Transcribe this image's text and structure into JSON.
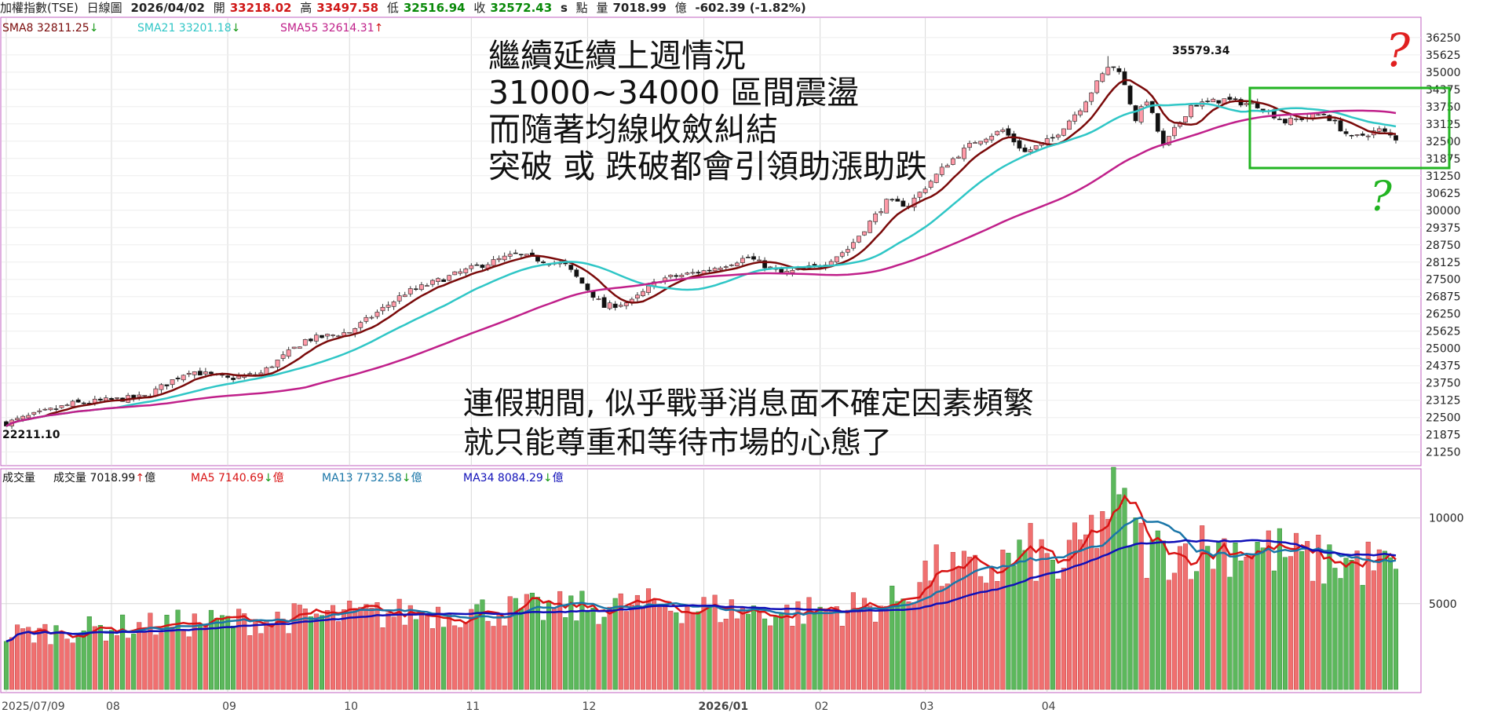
{
  "header": {
    "symbol": "加權指數(TSE)",
    "period": "日線圖",
    "date": "2026/04/02",
    "open_label": "開",
    "open": "33218.02",
    "high_label": "高",
    "high": "33497.58",
    "low_label": "低",
    "low": "32516.94",
    "close_label": "收",
    "close": "32572.43",
    "s_mark": "s",
    "points_label": "點",
    "amount_label": "量",
    "amount": "7018.99",
    "amount_unit": "億",
    "change": "-602.39 (-1.82%)"
  },
  "price_panel": {
    "legend": [
      {
        "label": "SMA8 32811.25",
        "arrow": "↓",
        "color": "#7a0a0a"
      },
      {
        "label": "SMA21 33201.18",
        "arrow": "↓",
        "color": "#2fc6c6"
      },
      {
        "label": "SMA55 32614.31",
        "arrow": "↑",
        "color": "#c0208a"
      }
    ],
    "high_marker": "35579.34",
    "low_marker": "22211.10"
  },
  "volume_panel": {
    "title": "成交量",
    "legend": [
      {
        "label": "成交量 7018.99",
        "arrow": "↑",
        "unit": "億",
        "color": "#111111"
      },
      {
        "label": "MA5 7140.69",
        "arrow": "↓",
        "unit": "億",
        "color": "#d81414"
      },
      {
        "label": "MA13 7732.58",
        "arrow": "↓",
        "unit": "億",
        "color": "#1a76a8"
      },
      {
        "label": "MA34 8084.29",
        "arrow": "↓",
        "unit": "億",
        "color": "#1010b8"
      }
    ]
  },
  "annotations": {
    "top_lines": [
      "繼續延續上週情況",
      "31000~34000 區間震盪",
      "而隨著均線收斂糾結",
      "突破 或 跌破都會引領助漲助跌"
    ],
    "bottom_lines": [
      "連假期間, 似乎戰爭消息面不確定因素頻繁",
      "就只能尊重和等待市場的心態了"
    ],
    "question_mark": "?"
  },
  "chart_data": [
    {
      "type": "candlestick",
      "x_ticks": [
        "2025/07/09",
        "08",
        "09",
        "10",
        "11",
        "12",
        "2026/01",
        "02",
        "03",
        "04"
      ],
      "y_ticks": [
        21250,
        21875,
        22500,
        23125,
        23750,
        24375,
        25000,
        25625,
        26250,
        26875,
        27500,
        28125,
        28750,
        29375,
        30000,
        30625,
        31250,
        31875,
        32500,
        33125,
        33750,
        34375,
        35000,
        35625,
        36250
      ],
      "ylim": [
        20900,
        36700
      ],
      "anchors": [
        [
          0,
          22300
        ],
        [
          12,
          23000
        ],
        [
          25,
          23250
        ],
        [
          33,
          24200
        ],
        [
          40,
          23900
        ],
        [
          46,
          24100
        ],
        [
          54,
          25300
        ],
        [
          62,
          25600
        ],
        [
          72,
          27000
        ],
        [
          84,
          27900
        ],
        [
          92,
          28400
        ],
        [
          101,
          28000
        ],
        [
          108,
          26500
        ],
        [
          113,
          26700
        ],
        [
          118,
          27500
        ],
        [
          126,
          27800
        ],
        [
          134,
          28300
        ],
        [
          140,
          27700
        ],
        [
          147,
          28000
        ],
        [
          152,
          28600
        ],
        [
          159,
          30300
        ],
        [
          163,
          30200
        ],
        [
          170,
          31700
        ],
        [
          175,
          32500
        ],
        [
          180,
          32900
        ],
        [
          184,
          32100
        ],
        [
          189,
          32600
        ],
        [
          194,
          33700
        ],
        [
          199,
          35200
        ],
        [
          201,
          35100
        ],
        [
          204,
          33300
        ],
        [
          206,
          34000
        ],
        [
          209,
          32300
        ],
        [
          214,
          33800
        ],
        [
          220,
          34000
        ],
        [
          226,
          33800
        ],
        [
          231,
          33200
        ],
        [
          238,
          33500
        ],
        [
          243,
          32600
        ],
        [
          248,
          32900
        ],
        [
          251,
          32600
        ]
      ],
      "session_high": 35579.34,
      "session_low": 22211.1,
      "series_sma": [
        8,
        21,
        55
      ],
      "last_sma": {
        "sma8": 32811.25,
        "sma21": 33201.18,
        "sma55": 32614.31
      }
    },
    {
      "type": "bar",
      "y_ticks": [
        5000,
        10000
      ],
      "ylim": [
        0,
        12500
      ],
      "anchors": [
        [
          0,
          3200
        ],
        [
          30,
          3800
        ],
        [
          60,
          4300
        ],
        [
          90,
          4600
        ],
        [
          120,
          4900
        ],
        [
          140,
          4400
        ],
        [
          160,
          5000
        ],
        [
          167,
          7000
        ],
        [
          175,
          6700
        ],
        [
          185,
          8000
        ],
        [
          190,
          7000
        ],
        [
          196,
          9000
        ],
        [
          200,
          11000
        ],
        [
          206,
          8000
        ],
        [
          215,
          8200
        ],
        [
          225,
          8400
        ],
        [
          235,
          7500
        ],
        [
          245,
          7400
        ],
        [
          251,
          7018.99
        ]
      ],
      "series": [
        {
          "name": "成交量",
          "last": 7018.99
        },
        {
          "name": "MA5",
          "last": 7140.69
        },
        {
          "name": "MA13",
          "last": 7732.58
        },
        {
          "name": "MA34",
          "last": 8084.29
        }
      ]
    }
  ]
}
